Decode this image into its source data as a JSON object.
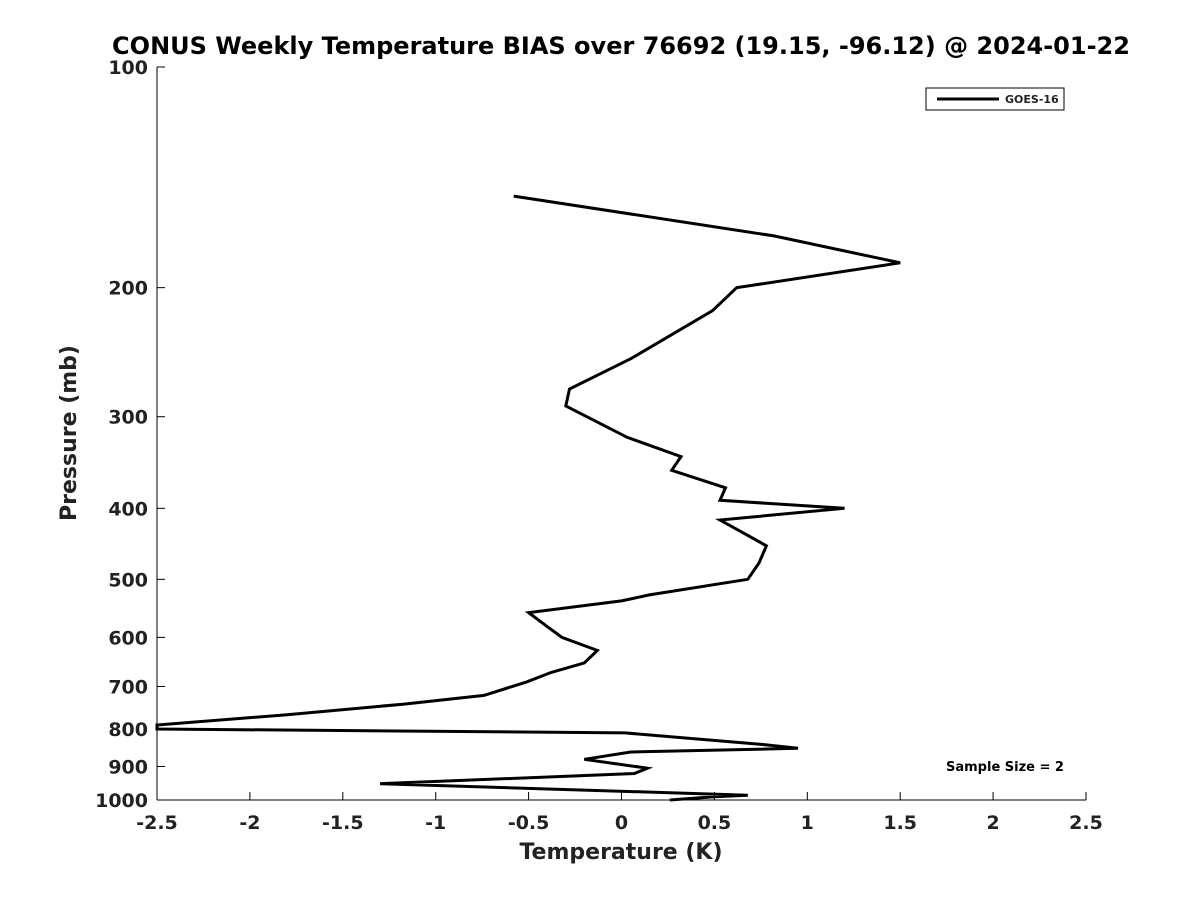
{
  "chart_data": {
    "type": "line",
    "title": "CONUS Weekly Temperature BIAS over 76692 (19.15, -96.12) @ 2024-01-22",
    "xlabel": "Temperature (K)",
    "ylabel": "Pressure (mb)",
    "xlim": [
      -2.5,
      2.5
    ],
    "ylim": [
      1000,
      100
    ],
    "y_scale": "log",
    "grid": false,
    "legend_position": "top-right",
    "x_ticks": [
      -2.5,
      -2,
      -1.5,
      -1,
      -0.5,
      0,
      0.5,
      1,
      1.5,
      2,
      2.5
    ],
    "x_tick_labels": [
      "-2.5",
      "-2",
      "-1.5",
      "-1",
      "-0.5",
      "0",
      "0.5",
      "1",
      "1.5",
      "2",
      "2.5"
    ],
    "y_ticks": [
      1000,
      900,
      800,
      700,
      600,
      500,
      400,
      300,
      200,
      100
    ],
    "y_tick_labels": [
      "1000",
      "900",
      "800",
      "700",
      "600",
      "500",
      "400",
      "300",
      "200",
      "100"
    ],
    "series": [
      {
        "name": "GOES-16",
        "color": "#000000",
        "points": [
          {
            "x": -0.58,
            "y": 150
          },
          {
            "x": 0.82,
            "y": 170
          },
          {
            "x": 1.5,
            "y": 185
          },
          {
            "x": 0.62,
            "y": 200
          },
          {
            "x": 0.49,
            "y": 215
          },
          {
            "x": 0.05,
            "y": 250
          },
          {
            "x": -0.28,
            "y": 275
          },
          {
            "x": -0.3,
            "y": 290
          },
          {
            "x": 0.03,
            "y": 320
          },
          {
            "x": 0.32,
            "y": 340
          },
          {
            "x": 0.27,
            "y": 355
          },
          {
            "x": 0.56,
            "y": 375
          },
          {
            "x": 0.53,
            "y": 390
          },
          {
            "x": 1.2,
            "y": 400
          },
          {
            "x": 0.53,
            "y": 415
          },
          {
            "x": 0.64,
            "y": 430
          },
          {
            "x": 0.78,
            "y": 450
          },
          {
            "x": 0.74,
            "y": 475
          },
          {
            "x": 0.68,
            "y": 500
          },
          {
            "x": 0.15,
            "y": 525
          },
          {
            "x": 0.0,
            "y": 535
          },
          {
            "x": -0.5,
            "y": 555
          },
          {
            "x": -0.4,
            "y": 580
          },
          {
            "x": -0.32,
            "y": 600
          },
          {
            "x": -0.13,
            "y": 625
          },
          {
            "x": -0.2,
            "y": 650
          },
          {
            "x": -0.38,
            "y": 670
          },
          {
            "x": -0.51,
            "y": 690
          },
          {
            "x": -0.74,
            "y": 720
          },
          {
            "x": -1.17,
            "y": 740
          },
          {
            "x": -1.8,
            "y": 765
          },
          {
            "x": -2.5,
            "y": 790
          },
          {
            "x": -2.5,
            "y": 800
          },
          {
            "x": 0.02,
            "y": 810
          },
          {
            "x": 0.76,
            "y": 840
          },
          {
            "x": 0.95,
            "y": 850
          },
          {
            "x": 0.05,
            "y": 860
          },
          {
            "x": -0.2,
            "y": 880
          },
          {
            "x": 0.14,
            "y": 905
          },
          {
            "x": 0.07,
            "y": 920
          },
          {
            "x": -1.3,
            "y": 950
          },
          {
            "x": 0.68,
            "y": 985
          },
          {
            "x": 0.5,
            "y": 990
          },
          {
            "x": 0.26,
            "y": 1000
          }
        ]
      }
    ],
    "annotations": [
      {
        "text": "Sample Size = 2"
      }
    ]
  }
}
